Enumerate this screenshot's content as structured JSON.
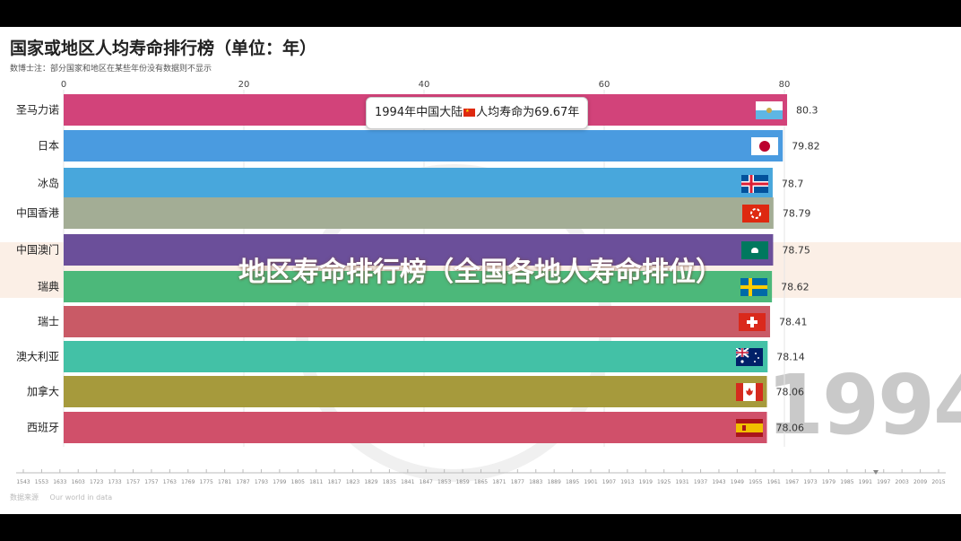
{
  "title": "国家或地区人均寿命排行榜（单位：年）",
  "note": "数博士注：部分国家和地区在某些年份没有数据则不显示",
  "current_year": "1994",
  "banner": "地区寿命排行榜（全国各地人寿命排位）",
  "tooltip": {
    "prefix": "1994年中国大陆",
    "suffix": "人均寿命为69.67年"
  },
  "source": {
    "label": "数据来源",
    "value": "Our world in data"
  },
  "colors": {
    "san-marino": "#d2437a",
    "japan": "#4a9be0",
    "iceland": "#48a7dc",
    "hong-kong": "#a3ad95",
    "macau": "#6b4f9a",
    "sweden": "#4cb87a",
    "switzerland": "#c95a66",
    "australia": "#43c1a6",
    "canada": "#a69a3c",
    "spain": "#d0506a"
  },
  "chart_data": {
    "type": "bar",
    "orientation": "horizontal",
    "xlim": [
      0,
      80
    ],
    "x_ticks": [
      "0",
      "20",
      "40",
      "60",
      "80"
    ],
    "categories": [
      "圣马力诺",
      "日本",
      "冰岛",
      "中国香港",
      "中国澳门",
      "瑞典",
      "瑞士",
      "澳大利亚",
      "加拿大",
      "西班牙"
    ],
    "values": [
      80.3,
      79.82,
      78.7,
      78.79,
      78.75,
      78.62,
      78.41,
      78.14,
      78.06,
      78.06
    ],
    "value_labels": [
      "80.3",
      "79.82",
      "78.7",
      "78.79",
      "78.75",
      "78.62",
      "78.41",
      "78.14",
      "78.06",
      "78.06"
    ],
    "series_keys": [
      "san-marino",
      "japan",
      "iceland",
      "hong-kong",
      "macau",
      "sweden",
      "switzerland",
      "australia",
      "canada",
      "spain"
    ],
    "flags": [
      "san-marino-flag-icon",
      "japan-flag-icon",
      "iceland-flag-icon",
      "hong-kong-flag-icon",
      "macau-flag-icon",
      "sweden-flag-icon",
      "switzerland-flag-icon",
      "australia-flag-icon",
      "canada-flag-icon",
      "spain-flag-icon"
    ],
    "timeline_ticks": [
      "1543",
      "1553",
      "1633",
      "1603",
      "1723",
      "1733",
      "1757",
      "1757",
      "1763",
      "1769",
      "1775",
      "1781",
      "1787",
      "1793",
      "1799",
      "1805",
      "1811",
      "1817",
      "1823",
      "1829",
      "1835",
      "1841",
      "1847",
      "1853",
      "1859",
      "1865",
      "1871",
      "1877",
      "1883",
      "1889",
      "1895",
      "1901",
      "1907",
      "1913",
      "1919",
      "1925",
      "1931",
      "1937",
      "1943",
      "1949",
      "1955",
      "1961",
      "1967",
      "1973",
      "1979",
      "1985",
      "1991",
      "1997",
      "2003",
      "2009",
      "2015"
    ],
    "grid": true
  }
}
